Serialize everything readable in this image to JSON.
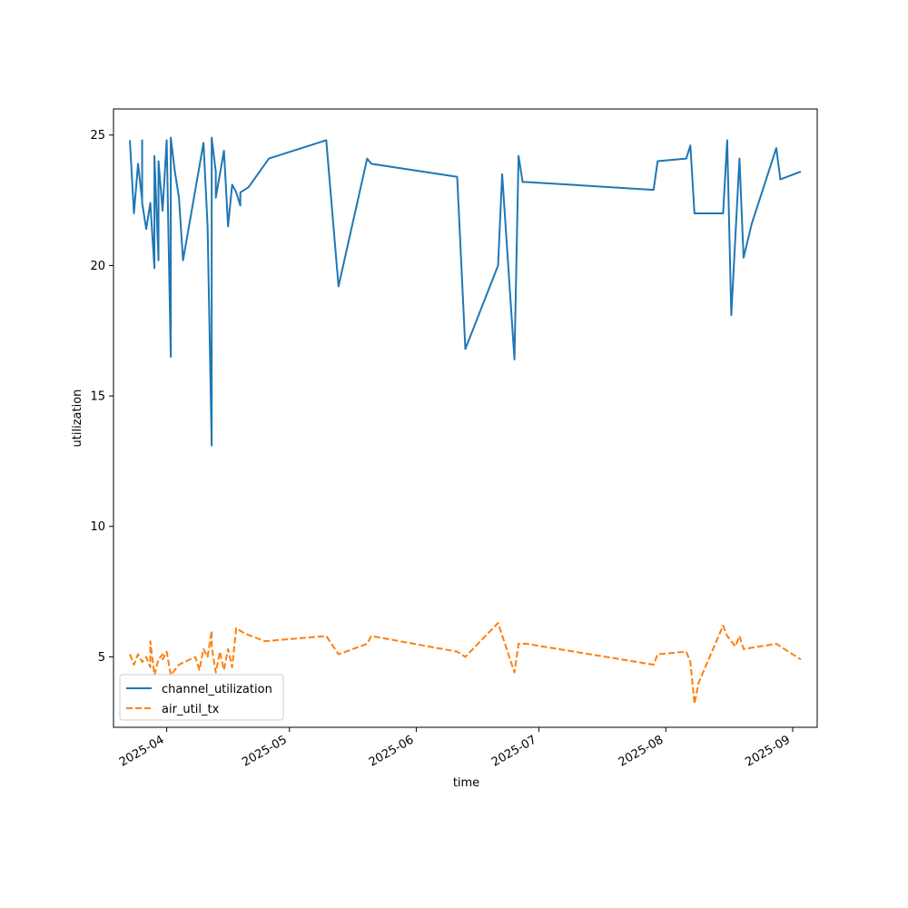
{
  "chart_data": {
    "type": "line",
    "xlabel": "time",
    "ylabel": "utilization",
    "x_axis": "date",
    "xlim": [
      "2025-03-19",
      "2025-09-07"
    ],
    "ylim": [
      2.3,
      26
    ],
    "x_ticks": [
      "2025-04-01",
      "2025-05-01",
      "2025-06-01",
      "2025-07-01",
      "2025-08-01",
      "2025-09-01"
    ],
    "x_tick_labels": [
      "2025-04",
      "2025-05",
      "2025-06",
      "2025-07",
      "2025-08",
      "2025-09"
    ],
    "y_ticks": [
      5,
      10,
      15,
      20,
      25
    ],
    "y_tick_labels": [
      "5",
      "10",
      "15",
      "20",
      "25"
    ],
    "grid": false,
    "legend": "lower-left",
    "series": [
      {
        "name": "channel_utilization",
        "color": "#1f77b4",
        "dash": "solid",
        "x": [
          "2025-03-23",
          "2025-03-24",
          "2025-03-25",
          "2025-03-26",
          "2025-03-26",
          "2025-03-26",
          "2025-03-27",
          "2025-03-28",
          "2025-03-29",
          "2025-03-29",
          "2025-03-30",
          "2025-03-30",
          "2025-03-31",
          "2025-04-01",
          "2025-04-02",
          "2025-04-02",
          "2025-04-03",
          "2025-04-04",
          "2025-04-05",
          "2025-04-10",
          "2025-04-11",
          "2025-04-12",
          "2025-04-12",
          "2025-04-13",
          "2025-04-13",
          "2025-04-15",
          "2025-04-16",
          "2025-04-17",
          "2025-04-18",
          "2025-04-19",
          "2025-04-19",
          "2025-04-20",
          "2025-04-21",
          "2025-04-26",
          "2025-05-10",
          "2025-05-13",
          "2025-05-20",
          "2025-05-21",
          "2025-06-11",
          "2025-06-13",
          "2025-06-21",
          "2025-06-22",
          "2025-06-25",
          "2025-06-26",
          "2025-06-27",
          "2025-06-28",
          "2025-07-29",
          "2025-07-30",
          "2025-08-06",
          "2025-08-07",
          "2025-08-08",
          "2025-08-15",
          "2025-08-16",
          "2025-08-17",
          "2025-08-19",
          "2025-08-20",
          "2025-08-22",
          "2025-08-28",
          "2025-08-29",
          "2025-09-03"
        ],
        "y": [
          24.8,
          22.0,
          23.9,
          22.5,
          24.8,
          22.4,
          21.4,
          22.4,
          19.9,
          24.2,
          20.2,
          24.0,
          22.1,
          24.8,
          16.5,
          24.9,
          23.6,
          22.6,
          20.2,
          24.7,
          21.5,
          13.1,
          24.9,
          23.6,
          22.6,
          24.4,
          21.5,
          23.1,
          22.8,
          22.3,
          22.8,
          22.9,
          23.0,
          24.1,
          24.8,
          19.2,
          24.1,
          23.9,
          23.4,
          16.8,
          20.0,
          23.5,
          16.4,
          24.2,
          23.2,
          23.2,
          22.9,
          24.0,
          24.1,
          24.6,
          22.0,
          22.0,
          24.8,
          18.1,
          24.1,
          20.3,
          21.6,
          24.5,
          23.3,
          23.6
        ]
      },
      {
        "name": "air_util_tx",
        "color": "#ff7f0e",
        "dash": "dashed",
        "x": [
          "2025-03-23",
          "2025-03-24",
          "2025-03-25",
          "2025-03-26",
          "2025-03-27",
          "2025-03-28",
          "2025-03-28",
          "2025-03-29",
          "2025-03-30",
          "2025-03-31",
          "2025-03-31",
          "2025-04-01",
          "2025-04-02",
          "2025-04-03",
          "2025-04-04",
          "2025-04-08",
          "2025-04-09",
          "2025-04-10",
          "2025-04-11",
          "2025-04-12",
          "2025-04-12",
          "2025-04-13",
          "2025-04-14",
          "2025-04-15",
          "2025-04-16",
          "2025-04-17",
          "2025-04-18",
          "2025-04-20",
          "2025-04-25",
          "2025-05-10",
          "2025-05-13",
          "2025-05-20",
          "2025-05-21",
          "2025-06-11",
          "2025-06-13",
          "2025-06-21",
          "2025-06-25",
          "2025-06-26",
          "2025-06-28",
          "2025-07-29",
          "2025-07-30",
          "2025-08-06",
          "2025-08-07",
          "2025-08-08",
          "2025-08-09",
          "2025-08-15",
          "2025-08-16",
          "2025-08-18",
          "2025-08-19",
          "2025-08-20",
          "2025-08-28",
          "2025-09-03"
        ],
        "y": [
          5.1,
          4.7,
          5.1,
          4.8,
          5.0,
          4.6,
          5.6,
          4.3,
          4.9,
          5.1,
          4.9,
          5.2,
          4.3,
          4.5,
          4.7,
          5.0,
          4.5,
          5.3,
          5.0,
          6.0,
          5.4,
          4.4,
          5.2,
          4.5,
          5.3,
          4.6,
          6.1,
          5.9,
          5.6,
          5.8,
          5.1,
          5.5,
          5.8,
          5.2,
          5.0,
          6.3,
          4.4,
          5.5,
          5.5,
          4.7,
          5.1,
          5.2,
          4.8,
          3.2,
          4.0,
          6.2,
          5.8,
          5.4,
          5.8,
          5.3,
          5.5,
          4.9
        ]
      }
    ]
  }
}
